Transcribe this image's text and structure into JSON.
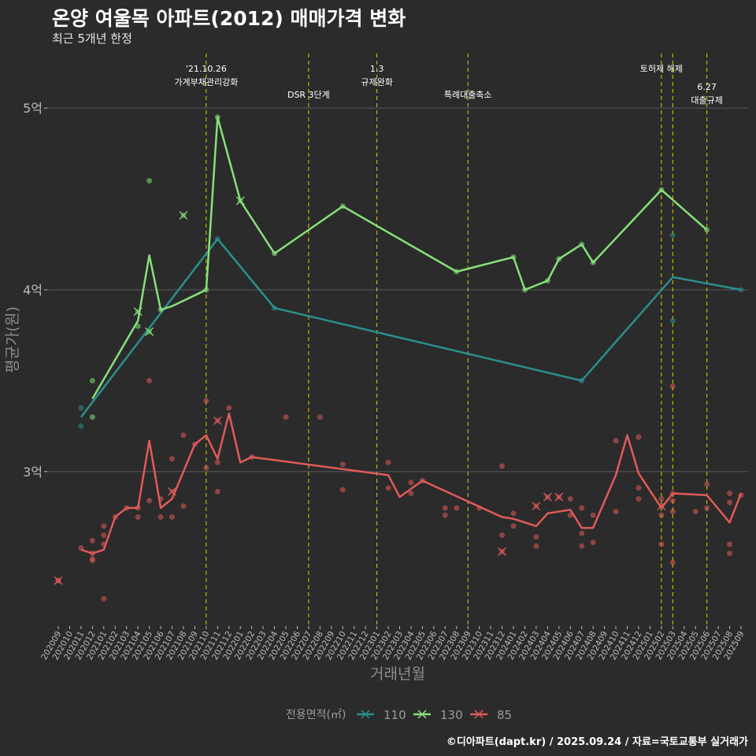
{
  "title": "온양 여울목 아파트(2012) 매매가격 변화",
  "subtitle": "최근 5개년 한정",
  "caption": "©디아파트(dapt.kr) / 2025.09.24 / 자료=국토교통부 실거래가",
  "colors": {
    "background": "#2b2b2b",
    "grid": "#5a5a5a",
    "axis_text": "#bdbdbd",
    "axis_title": "#8c8c8c",
    "event_line": "#d4d400",
    "event_text": "#ffffff",
    "legend_title": "#9a9a9a",
    "legend_text": "#9a9a9a"
  },
  "chart_data": {
    "type": "line",
    "xlabel": "거래년월",
    "ylabel": "평균가(원)",
    "x": [
      "202009",
      "202010",
      "202011",
      "202012",
      "202101",
      "202102",
      "202103",
      "202104",
      "202105",
      "202106",
      "202107",
      "202108",
      "202109",
      "202110",
      "202111",
      "202112",
      "202201",
      "202202",
      "202203",
      "202204",
      "202205",
      "202206",
      "202207",
      "202208",
      "202209",
      "202210",
      "202211",
      "202212",
      "202301",
      "202302",
      "202303",
      "202304",
      "202305",
      "202306",
      "202307",
      "202308",
      "202309",
      "202310",
      "202311",
      "202312",
      "202401",
      "202402",
      "202403",
      "202404",
      "202405",
      "202406",
      "202407",
      "202408",
      "202409",
      "202410",
      "202411",
      "202412",
      "202501",
      "202502",
      "202503",
      "202504",
      "202505",
      "202506",
      "202507",
      "202508",
      "202509"
    ],
    "ylim": [
      2.15,
      5.3
    ],
    "y_ticks": [
      {
        "value": 3,
        "label": "3억"
      },
      {
        "value": 4,
        "label": "4억"
      },
      {
        "value": 5,
        "label": "5억"
      }
    ],
    "grid": true,
    "legend": {
      "title": "전용면적(㎡)",
      "position": "bottom",
      "entries": [
        {
          "label": "110",
          "color": "#2a8f8c"
        },
        {
          "label": "130",
          "color": "#86e07a"
        },
        {
          "label": "85",
          "color": "#e05a5a"
        }
      ]
    },
    "events": [
      {
        "x": "202110",
        "lines": [
          "'21.10.26",
          "가계부채관리강화"
        ],
        "row": 0
      },
      {
        "x": "202207",
        "lines": [
          "DSR 3단계"
        ],
        "row": 1
      },
      {
        "x": "202301",
        "lines": [
          "1.3",
          "규제완화"
        ],
        "row": 0
      },
      {
        "x": "202309",
        "lines": [
          "특례대출축소"
        ],
        "row": 1
      },
      {
        "x": "202502",
        "lines": [
          "토허제 해제"
        ],
        "row": 0
      },
      {
        "x": "202503",
        "lines": [],
        "row": 0
      },
      {
        "x": "202506",
        "lines": [
          "6.27",
          "대출규제"
        ],
        "row": 2
      }
    ],
    "series": [
      {
        "name": "110",
        "color": "#2a8f8c",
        "line": [
          [
            "202011",
            3.3
          ],
          [
            "202111",
            4.28
          ],
          [
            "202204",
            3.9
          ],
          [
            "202407",
            3.5
          ],
          [
            "202503",
            4.07
          ],
          [
            "202509",
            4.0
          ]
        ],
        "points": [
          [
            "202011",
            3.35
          ],
          [
            "202011",
            3.25
          ],
          [
            "202111",
            4.28
          ],
          [
            "202204",
            3.9
          ],
          [
            "202407",
            3.5
          ],
          [
            "202503",
            4.3
          ],
          [
            "202503",
            3.83
          ],
          [
            "202509",
            4.0
          ]
        ],
        "cancelled": []
      },
      {
        "name": "130",
        "color": "#86e07a",
        "line": [
          [
            "202012",
            3.4
          ],
          [
            "202104",
            3.83
          ],
          [
            "202105",
            4.19
          ],
          [
            "202106",
            3.89
          ],
          [
            "202107",
            3.91
          ],
          [
            "202110",
            4.0
          ],
          [
            "202111",
            4.95
          ],
          [
            "202201",
            4.49
          ],
          [
            "202204",
            4.2
          ],
          [
            "202210",
            4.46
          ],
          [
            "202308",
            4.1
          ],
          [
            "202401",
            4.18
          ],
          [
            "202402",
            4.0
          ],
          [
            "202404",
            4.05
          ],
          [
            "202405",
            4.17
          ],
          [
            "202407",
            4.25
          ],
          [
            "202408",
            4.15
          ],
          [
            "202502",
            4.55
          ],
          [
            "202506",
            4.33
          ]
        ],
        "points": [
          [
            "202012",
            3.5
          ],
          [
            "202012",
            3.3
          ],
          [
            "202104",
            3.8
          ],
          [
            "202105",
            4.6
          ],
          [
            "202106",
            3.89
          ],
          [
            "202110",
            4.0
          ],
          [
            "202111",
            4.95
          ],
          [
            "202204",
            4.2
          ],
          [
            "202210",
            4.46
          ],
          [
            "202308",
            4.1
          ],
          [
            "202401",
            4.18
          ],
          [
            "202402",
            4.0
          ],
          [
            "202404",
            4.05
          ],
          [
            "202405",
            4.17
          ],
          [
            "202407",
            4.25
          ],
          [
            "202408",
            4.15
          ],
          [
            "202502",
            4.55
          ],
          [
            "202506",
            4.33
          ]
        ],
        "cancelled": [
          [
            "202104",
            3.88
          ],
          [
            "202105",
            3.77
          ],
          [
            "202108",
            4.41
          ],
          [
            "202201",
            4.49
          ]
        ]
      },
      {
        "name": "85",
        "color": "#e05a5a",
        "line": [
          [
            "202011",
            2.57
          ],
          [
            "202012",
            2.55
          ],
          [
            "202101",
            2.57
          ],
          [
            "202102",
            2.75
          ],
          [
            "202103",
            2.8
          ],
          [
            "202104",
            2.8
          ],
          [
            "202105",
            3.17
          ],
          [
            "202106",
            2.8
          ],
          [
            "202107",
            2.85
          ],
          [
            "202109",
            3.15
          ],
          [
            "202110",
            3.2
          ],
          [
            "202111",
            3.07
          ],
          [
            "202112",
            3.32
          ],
          [
            "202201",
            3.05
          ],
          [
            "202202",
            3.08
          ],
          [
            "202302",
            2.98
          ],
          [
            "202303",
            2.86
          ],
          [
            "202305",
            2.95
          ],
          [
            "202312",
            2.75
          ],
          [
            "202401",
            2.74
          ],
          [
            "202403",
            2.7
          ],
          [
            "202404",
            2.77
          ],
          [
            "202406",
            2.79
          ],
          [
            "202407",
            2.69
          ],
          [
            "202408",
            2.69
          ],
          [
            "202410",
            2.98
          ],
          [
            "202411",
            3.2
          ],
          [
            "202412",
            2.99
          ],
          [
            "202502",
            2.8
          ],
          [
            "202503",
            2.88
          ],
          [
            "202506",
            2.87
          ],
          [
            "202508",
            2.72
          ],
          [
            "202509",
            2.88
          ]
        ],
        "points": [
          [
            "202009",
            2.4
          ],
          [
            "202011",
            2.58
          ],
          [
            "202012",
            2.62
          ],
          [
            "202012",
            2.55
          ],
          [
            "202012",
            2.52
          ],
          [
            "202012",
            2.51
          ],
          [
            "202101",
            2.7
          ],
          [
            "202101",
            2.65
          ],
          [
            "202101",
            2.6
          ],
          [
            "202101",
            2.3
          ],
          [
            "202102",
            2.75
          ],
          [
            "202103",
            2.8
          ],
          [
            "202104",
            2.8
          ],
          [
            "202104",
            2.75
          ],
          [
            "202105",
            2.84
          ],
          [
            "202105",
            3.5
          ],
          [
            "202106",
            2.85
          ],
          [
            "202106",
            2.75
          ],
          [
            "202107",
            3.07
          ],
          [
            "202107",
            2.75
          ],
          [
            "202108",
            3.2
          ],
          [
            "202108",
            2.81
          ],
          [
            "202109",
            3.15
          ],
          [
            "202110",
            3.39
          ],
          [
            "202110",
            3.02
          ],
          [
            "202111",
            3.05
          ],
          [
            "202111",
            2.89
          ],
          [
            "202112",
            3.35
          ],
          [
            "202202",
            3.08
          ],
          [
            "202205",
            3.3
          ],
          [
            "202208",
            3.3
          ],
          [
            "202210",
            3.04
          ],
          [
            "202210",
            2.9
          ],
          [
            "202302",
            3.05
          ],
          [
            "202302",
            2.91
          ],
          [
            "202304",
            2.94
          ],
          [
            "202304",
            2.88
          ],
          [
            "202305",
            2.95
          ],
          [
            "202307",
            2.8
          ],
          [
            "202307",
            2.76
          ],
          [
            "202308",
            2.8
          ],
          [
            "202310",
            2.8
          ],
          [
            "202312",
            3.03
          ],
          [
            "202312",
            2.65
          ],
          [
            "202401",
            2.77
          ],
          [
            "202401",
            2.7
          ],
          [
            "202403",
            2.64
          ],
          [
            "202403",
            2.59
          ],
          [
            "202406",
            2.85
          ],
          [
            "202406",
            2.76
          ],
          [
            "202407",
            2.8
          ],
          [
            "202407",
            2.66
          ],
          [
            "202407",
            2.59
          ],
          [
            "202408",
            2.76
          ],
          [
            "202408",
            2.61
          ],
          [
            "202410",
            3.17
          ],
          [
            "202410",
            2.78
          ],
          [
            "202412",
            3.19
          ],
          [
            "202412",
            2.91
          ],
          [
            "202412",
            2.85
          ],
          [
            "202502",
            2.85
          ],
          [
            "202502",
            2.76
          ],
          [
            "202502",
            2.6
          ],
          [
            "202503",
            3.47
          ],
          [
            "202503",
            2.88
          ],
          [
            "202503",
            2.84
          ],
          [
            "202503",
            2.78
          ],
          [
            "202503",
            2.5
          ],
          [
            "202505",
            2.78
          ],
          [
            "202506",
            2.93
          ],
          [
            "202506",
            2.8
          ],
          [
            "202508",
            2.88
          ],
          [
            "202508",
            2.83
          ],
          [
            "202508",
            2.6
          ],
          [
            "202508",
            2.55
          ],
          [
            "202509",
            2.87
          ]
        ],
        "cancelled": [
          [
            "202009",
            2.4
          ],
          [
            "202107",
            2.89
          ],
          [
            "202111",
            3.28
          ],
          [
            "202312",
            2.56
          ],
          [
            "202403",
            2.81
          ],
          [
            "202404",
            2.86
          ],
          [
            "202405",
            2.86
          ],
          [
            "202502",
            2.81
          ]
        ]
      }
    ]
  }
}
